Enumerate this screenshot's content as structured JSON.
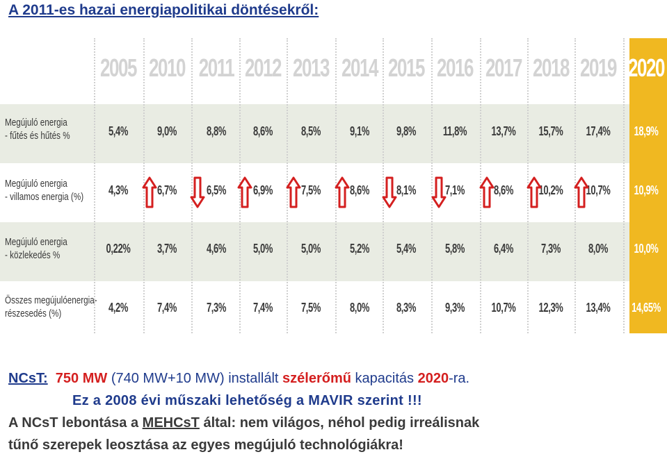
{
  "title": "A 2011-es hazai energiapolitikai döntésekről:",
  "table": {
    "years": [
      "2005",
      "2010",
      "2011",
      "2012",
      "2013",
      "2014",
      "2015",
      "2016",
      "2017",
      "2018",
      "2019",
      "2020"
    ],
    "rows": [
      {
        "label_lines": [
          "Megújuló energia",
          "- fűtés és hűtés %"
        ],
        "values": [
          "5,4%",
          "9,0%",
          "8,8%",
          "8,6%",
          "8,5%",
          "9,1%",
          "9,8%",
          "11,8%",
          "13,7%",
          "15,7%",
          "17,4%",
          "18,9%"
        ]
      },
      {
        "label_lines": [
          "Megújuló energia",
          "- villamos energia (%)"
        ],
        "values": [
          "4,3%",
          "6,7%",
          "6,5%",
          "6,9%",
          "7,5%",
          "8,6%",
          "8,1%",
          "7,1%",
          "8,6%",
          "10,2%",
          "10,7%",
          "10,9%"
        ],
        "arrows": [
          "up",
          "down",
          "up",
          "up",
          "up",
          "down",
          "down",
          "up",
          "up",
          "up"
        ]
      },
      {
        "label_lines": [
          "Megújuló energia",
          "- közlekedés %"
        ],
        "values": [
          "0,22%",
          "3,7%",
          "4,6%",
          "5,0%",
          "5,0%",
          "5,2%",
          "5,4%",
          "5,8%",
          "6,4%",
          "7,3%",
          "8,0%",
          "10,0%"
        ]
      },
      {
        "label_lines": [
          "Összes megújulóenergia-",
          "részesedés (%)"
        ],
        "values": [
          "4,2%",
          "7,4%",
          "7,3%",
          "7,4%",
          "7,5%",
          "8,0%",
          "8,3%",
          "9,3%",
          "10,7%",
          "12,3%",
          "13,4%",
          "14,65%"
        ]
      }
    ],
    "colors": {
      "highlight": "#f0b821",
      "shade": "#e9ece3",
      "arrow_red": "#d41f1f"
    }
  },
  "text": {
    "line1": {
      "prefix": "NCsT:",
      "mw": "750 MW",
      "mid": "(740 MW+10 MW) installált",
      "wind": "szélerőmű",
      "kap": "kapacitás",
      "year": "2020",
      "suffix": "-ra."
    },
    "line2": "Ez a 2008 évi műszaki lehetőség a MAVIR szerint !!!",
    "line3": {
      "a": "A NCsT lebontása a",
      "mehcst": "MEHCsT",
      "b": "által: nem világos, néhol pedig irreálisnak"
    },
    "line4": "tűnő szerepek leosztása az egyes megújuló technológiákra!"
  }
}
